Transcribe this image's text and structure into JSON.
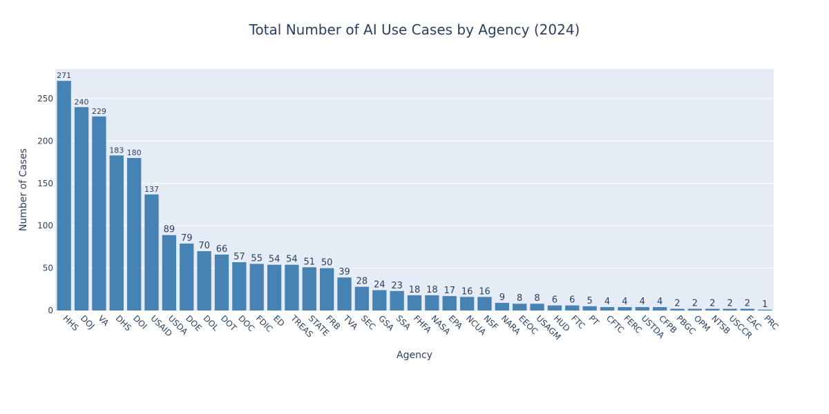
{
  "chart_data": {
    "type": "bar",
    "title": "Total Number of AI Use Cases by Agency (2024)",
    "xlabel": "Agency",
    "ylabel": "Number of Cases",
    "categories": [
      "HHS",
      "DOJ",
      "VA",
      "DHS",
      "DOI",
      "USAID",
      "USDA",
      "DOE",
      "DOL",
      "DOT",
      "DOC",
      "FDIC",
      "ED",
      "TREAS",
      "STATE",
      "FRB",
      "TVA",
      "SEC",
      "GSA",
      "SSA",
      "FHFA",
      "NASA",
      "EPA",
      "NCUA",
      "NSF",
      "NARA",
      "EEOC",
      "USAGM",
      "HUD",
      "FTC",
      "PT",
      "CFTC",
      "FERC",
      "USTDA",
      "CFPB",
      "PBGC",
      "OPM",
      "NTSB",
      "USCCR",
      "EAC",
      "PRC"
    ],
    "values": [
      271,
      240,
      229,
      183,
      180,
      137,
      89,
      79,
      70,
      66,
      57,
      55,
      54,
      54,
      51,
      50,
      39,
      28,
      24,
      23,
      18,
      18,
      17,
      16,
      16,
      9,
      8,
      8,
      6,
      6,
      5,
      4,
      4,
      4,
      4,
      2,
      2,
      2,
      2,
      2,
      1
    ],
    "ylim": [
      0,
      285
    ],
    "yticks": [
      0,
      50,
      100,
      150,
      200,
      250
    ],
    "grid": true,
    "colors": {
      "bar": "#4682b4",
      "plot_bg": "#e5ecf6",
      "grid": "#ffffff",
      "text": "#2a3f5f"
    }
  }
}
